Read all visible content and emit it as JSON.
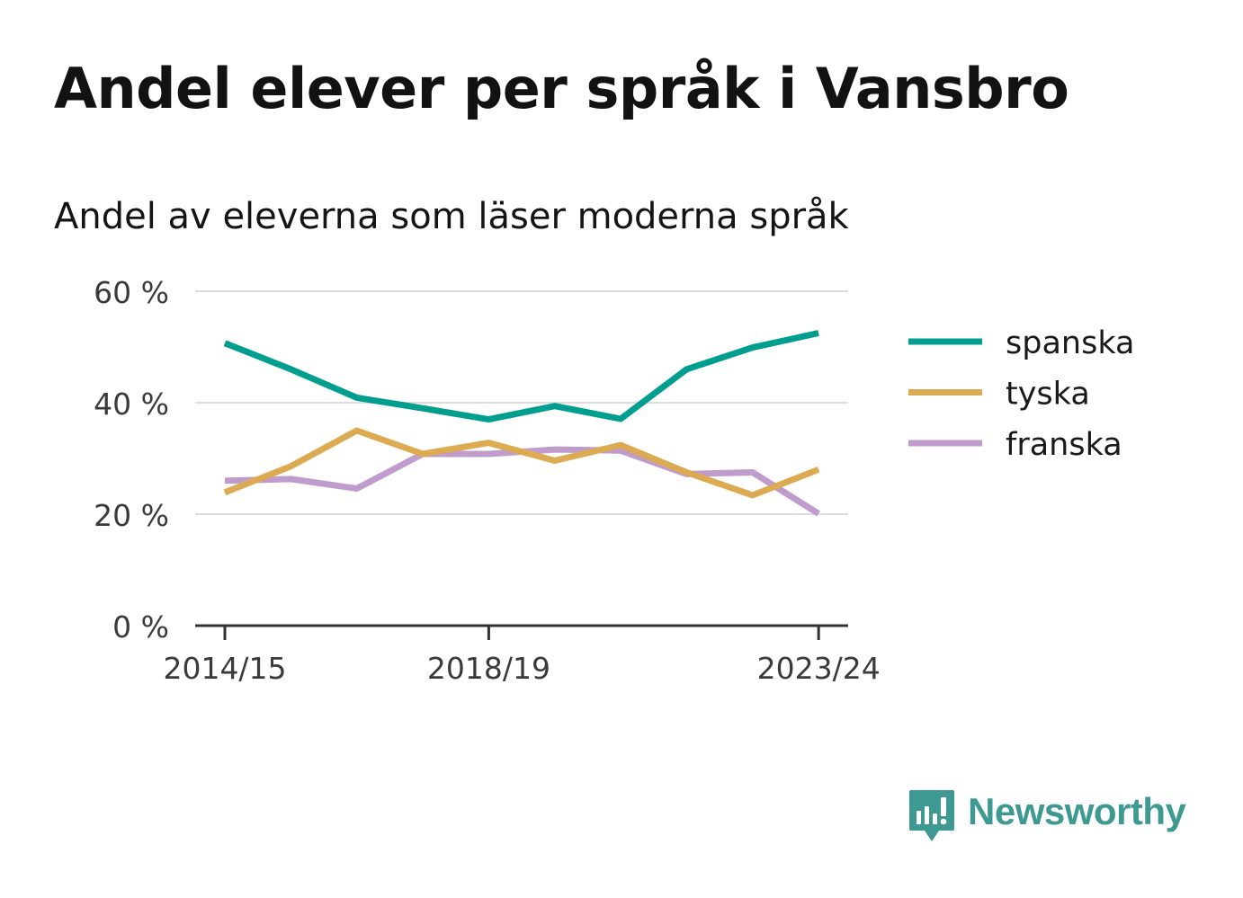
{
  "title": "Andel elever per språk i Vansbro",
  "subtitle": "Andel av eleverna som läser moderna språk",
  "brand": {
    "name": "Newsworthy",
    "icon": "newsworthy-logo-icon",
    "color": "#3d9991"
  },
  "chart_data": {
    "type": "line",
    "title": "Andel elever per språk i Vansbro",
    "subtitle": "Andel av eleverna som läser moderna språk",
    "xlabel": "",
    "ylabel": "",
    "x": [
      "2014/15",
      "2015/16",
      "2016/17",
      "2017/18",
      "2018/19",
      "2019/20",
      "2020/21",
      "2021/22",
      "2022/23",
      "2023/24"
    ],
    "x_tick_labels": [
      "2014/15",
      "2018/19",
      "2023/24"
    ],
    "y_ticks": [
      0,
      20,
      40,
      60
    ],
    "y_tick_labels": [
      "0 %",
      "20 %",
      "40 %",
      "60 %"
    ],
    "ylim": [
      0,
      60
    ],
    "grid": true,
    "legend_position": "right",
    "series": [
      {
        "name": "spanska",
        "color": "#009e8e",
        "values": [
          50.7,
          46.0,
          40.9,
          39.0,
          37.0,
          39.4,
          37.1,
          46.0,
          49.9,
          52.5
        ]
      },
      {
        "name": "tyska",
        "color": "#dcaa50",
        "values": [
          23.9,
          28.6,
          35.0,
          30.8,
          32.8,
          29.6,
          32.4,
          27.5,
          23.4,
          28.0
        ]
      },
      {
        "name": "franska",
        "color": "#c09ccc",
        "values": [
          26.0,
          26.3,
          24.6,
          30.8,
          30.8,
          31.6,
          31.4,
          27.2,
          27.5,
          20.1
        ]
      }
    ]
  }
}
